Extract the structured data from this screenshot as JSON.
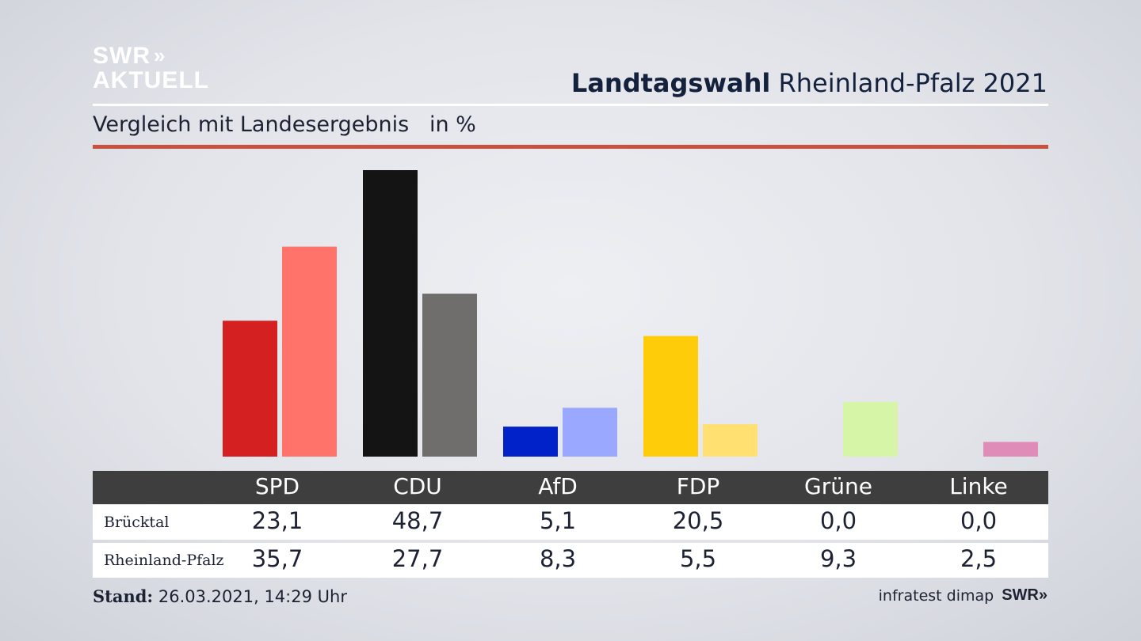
{
  "logo": {
    "line1": "SWR",
    "line2": "AKTUELL",
    "chevrons": "»"
  },
  "title": {
    "bold": "Landtagswahl",
    "rest": " Rheinland-Pfalz 2021"
  },
  "subtitle": "Vergleich mit Landesergebnis   in %",
  "chart_data": {
    "type": "bar",
    "categories": [
      "SPD",
      "CDU",
      "AfD",
      "FDP",
      "Grüne",
      "Linke"
    ],
    "series": [
      {
        "name": "Brücktal",
        "values": [
          23.1,
          48.7,
          5.1,
          20.5,
          0.0,
          0.0
        ],
        "colors": [
          "#d42020",
          "#141414",
          "#0022c8",
          "#ffcc0a",
          "#ccee88",
          "#d4609a"
        ]
      },
      {
        "name": "Rheinland-Pfalz",
        "values": [
          35.7,
          27.7,
          8.3,
          5.5,
          9.3,
          2.5
        ],
        "colors": [
          "#ff736b",
          "#6f6e6c",
          "#9aa8ff",
          "#ffe070",
          "#d6f5a6",
          "#e08cb8"
        ]
      }
    ],
    "ylim": [
      0,
      48.7
    ],
    "grid": false
  },
  "table": {
    "headers": [
      "SPD",
      "CDU",
      "AfD",
      "FDP",
      "Grüne",
      "Linke"
    ],
    "rows": [
      {
        "label": "Brücktal",
        "values": [
          "23,1",
          "48,7",
          "5,1",
          "20,5",
          "0,0",
          "0,0"
        ]
      },
      {
        "label": "Rheinland-Pfalz",
        "values": [
          "35,7",
          "27,7",
          "8,3",
          "5,5",
          "9,3",
          "2,5"
        ]
      }
    ]
  },
  "footer": {
    "stand_label": "Stand:",
    "stand_value": " 26.03.2021, 14:29 Uhr",
    "source": "infratest dimap",
    "brand": "SWR",
    "brand_chevrons": "»"
  },
  "colors": {
    "accent_rule": "#c8523e",
    "table_header_bg": "#3e3e3e",
    "title_text": "#14213d"
  }
}
